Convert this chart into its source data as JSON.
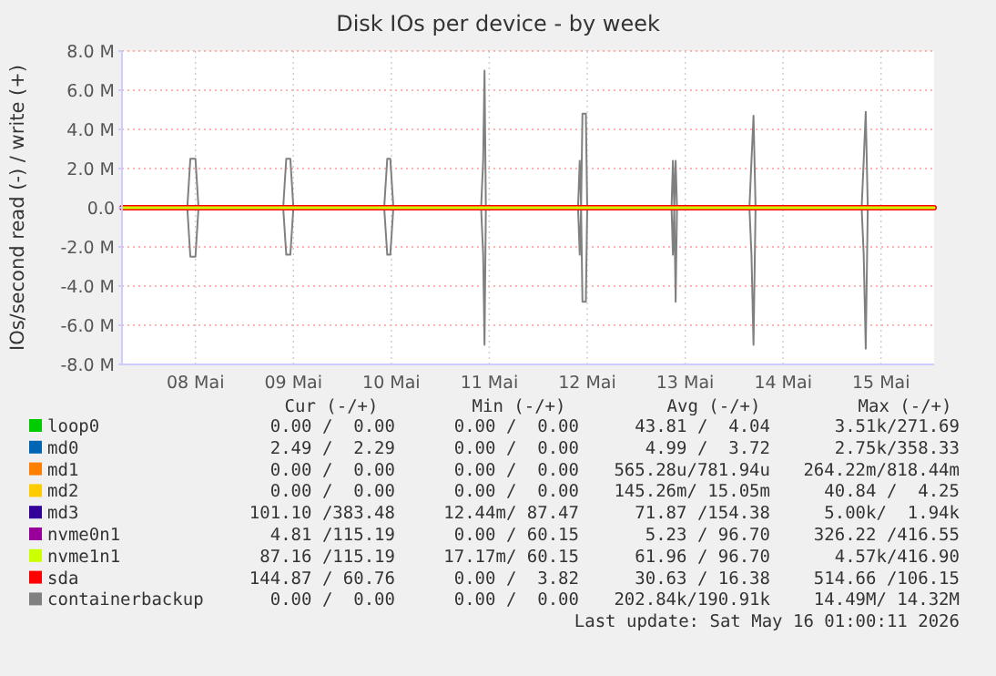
{
  "chart_data": {
    "type": "line",
    "title": "Disk IOs per device - by week",
    "ylabel": "IOs/second read (-) / write (+)",
    "xlim": [
      "2026-05-07T18:00",
      "2026-05-16T01:00"
    ],
    "xticks": [
      {
        "value": "2026-05-08T12:00",
        "label": "08 Mai"
      },
      {
        "value": "2026-05-09T12:00",
        "label": "09 Mai"
      },
      {
        "value": "2026-05-10T12:00",
        "label": "10 Mai"
      },
      {
        "value": "2026-05-11T12:00",
        "label": "11 Mai"
      },
      {
        "value": "2026-05-12T12:00",
        "label": "12 Mai"
      },
      {
        "value": "2026-05-13T12:00",
        "label": "13 Mai"
      },
      {
        "value": "2026-05-14T12:00",
        "label": "14 Mai"
      },
      {
        "value": "2026-05-15T12:00",
        "label": "15 Mai"
      }
    ],
    "ylim": [
      -8,
      8
    ],
    "yticks": [
      {
        "value": -8,
        "label": "-8.0 M"
      },
      {
        "value": -6,
        "label": "-6.0 M"
      },
      {
        "value": -4,
        "label": "-4.0 M"
      },
      {
        "value": -2,
        "label": "-2.0 M"
      },
      {
        "value": 0,
        "label": "0.0"
      },
      {
        "value": 2,
        "label": "2.0 M"
      },
      {
        "value": 4,
        "label": "4.0 M"
      },
      {
        "value": 6,
        "label": "6.0 M"
      },
      {
        "value": 8,
        "label": "8.0 M"
      }
    ],
    "grid": true,
    "legend": "bottom",
    "series": [
      {
        "name": "loop0",
        "color": "#00cc00"
      },
      {
        "name": "md0",
        "color": "#0066b3"
      },
      {
        "name": "md1",
        "color": "#ff8000"
      },
      {
        "name": "md2",
        "color": "#ffcc00"
      },
      {
        "name": "md3",
        "color": "#330099"
      },
      {
        "name": "nvme0n1",
        "color": "#990099"
      },
      {
        "name": "nvme1n1",
        "color": "#ccff00",
        "x": [
          "2026-05-07T18:00",
          "2026-05-16T01:00"
        ],
        "values": [
          0,
          0
        ]
      },
      {
        "name": "sda",
        "color": "#ff0000",
        "x": [
          "2026-05-07T18:00",
          "2026-05-16T01:00"
        ],
        "values": [
          0,
          0
        ]
      },
      {
        "name": "containerbackup",
        "color": "#808080",
        "x": [
          "2026-05-07T18:00",
          "2026-05-08T10:00",
          "2026-05-08T10:45",
          "2026-05-08T12:00",
          "2026-05-08T12:45",
          "2026-05-09T09:30",
          "2026-05-09T10:15",
          "2026-05-09T11:15",
          "2026-05-09T12:00",
          "2026-05-10T10:15",
          "2026-05-10T11:00",
          "2026-05-10T11:45",
          "2026-05-10T12:30",
          "2026-05-11T10:00",
          "2026-05-11T10:30",
          "2026-05-11T10:50",
          "2026-05-11T11:10",
          "2026-05-12T09:45",
          "2026-05-12T10:10",
          "2026-05-12T10:30",
          "2026-05-12T10:50",
          "2026-05-12T11:40",
          "2026-05-12T12:00",
          "2026-05-13T08:40",
          "2026-05-13T09:00",
          "2026-05-13T09:20",
          "2026-05-13T09:40",
          "2026-05-13T10:00",
          "2026-05-14T03:45",
          "2026-05-14T04:15",
          "2026-05-14T04:45",
          "2026-05-14T05:15",
          "2026-05-15T07:15",
          "2026-05-15T07:45",
          "2026-05-15T08:15",
          "2026-05-15T08:45",
          "2026-05-16T01:00"
        ],
        "values": [
          0,
          0,
          2.5,
          2.5,
          0,
          0,
          2.5,
          2.5,
          0,
          0,
          2.5,
          2.5,
          0,
          0,
          2.4,
          7.0,
          0,
          0,
          2.4,
          0,
          4.8,
          4.8,
          0,
          0,
          2.4,
          0,
          2.4,
          0,
          0,
          2.4,
          4.7,
          0,
          0,
          2.4,
          4.9,
          0,
          0
        ]
      },
      {
        "color": "#808080",
        "x": [
          "2026-05-07T18:00",
          "2026-05-08T10:00",
          "2026-05-08T10:45",
          "2026-05-08T12:00",
          "2026-05-08T12:45",
          "2026-05-09T09:30",
          "2026-05-09T10:15",
          "2026-05-09T11:15",
          "2026-05-09T12:00",
          "2026-05-10T10:15",
          "2026-05-10T11:00",
          "2026-05-10T11:45",
          "2026-05-10T12:30",
          "2026-05-11T10:00",
          "2026-05-11T10:30",
          "2026-05-11T10:50",
          "2026-05-11T11:10",
          "2026-05-12T09:45",
          "2026-05-12T10:10",
          "2026-05-12T10:30",
          "2026-05-12T10:50",
          "2026-05-12T11:40",
          "2026-05-12T12:00",
          "2026-05-13T08:40",
          "2026-05-13T09:00",
          "2026-05-13T09:20",
          "2026-05-13T09:40",
          "2026-05-13T10:00",
          "2026-05-14T03:45",
          "2026-05-14T04:15",
          "2026-05-14T04:45",
          "2026-05-14T05:15",
          "2026-05-15T07:15",
          "2026-05-15T07:45",
          "2026-05-15T08:15",
          "2026-05-15T08:45",
          "2026-05-16T01:00"
        ],
        "values": [
          0,
          0,
          -2.5,
          -2.5,
          0,
          0,
          -2.4,
          -2.4,
          0,
          0,
          -2.4,
          -2.4,
          0,
          0,
          -2.4,
          -7.0,
          0,
          0,
          -2.4,
          0,
          -4.8,
          -4.8,
          0,
          0,
          -2.4,
          0,
          -4.8,
          0,
          0,
          -2.4,
          -7.0,
          0,
          0,
          -2.4,
          -7.2,
          0,
          0
        ]
      }
    ],
    "annotations": [
      "Cur (-/+)",
      "Min (-/+)",
      "Avg (-/+)",
      "Max (-/+)",
      "0.00 /  0.00",
      "0.00 /  0.00",
      "43.81 /  4.04",
      "3.51k/271.69",
      "2.49 /  2.29",
      "0.00 /  0.00",
      "4.99 /  3.72",
      "2.75k/358.33",
      "0.00 /  0.00",
      "0.00 /  0.00",
      "565.28u/781.94u",
      "264.22m/818.44m",
      "0.00 /  0.00",
      "0.00 /  0.00",
      "145.26m/ 15.05m",
      "40.84 /  4.25",
      "101.10 /383.48",
      "12.44m/ 87.47",
      "71.87 /154.38",
      "5.00k/  1.94k",
      "4.81 /115.19",
      "0.00 / 60.15",
      "5.23 / 96.70",
      "326.22 /416.55",
      "87.16 /115.19",
      "17.17m/ 60.15",
      "61.96 / 96.70",
      "4.57k/416.90",
      "144.87 / 60.76",
      "0.00 /  3.82",
      "30.63 / 16.38",
      "514.66 /106.15",
      "0.00 /  0.00",
      "0.00 /  0.00",
      "202.84k/190.91k",
      "14.49M/ 14.32M",
      "Last update: Sat May 16 01:00:11 2026"
    ]
  }
}
